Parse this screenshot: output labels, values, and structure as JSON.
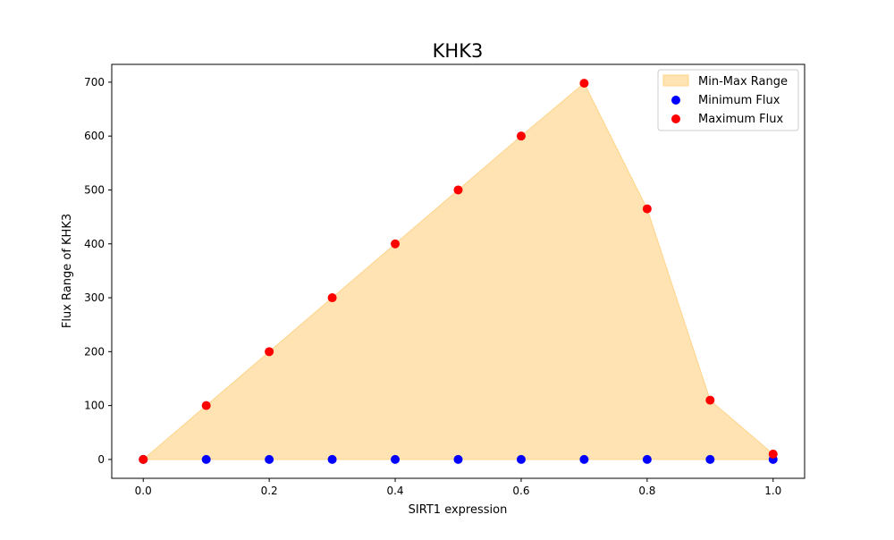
{
  "chart_data": {
    "type": "scatter",
    "title": "KHK3",
    "xlabel": "SIRT1 expression",
    "ylabel": "Flux Range of KHK3",
    "xlim": [
      -0.05,
      1.05
    ],
    "ylim": [
      -35,
      733
    ],
    "xticks": [
      0.0,
      0.2,
      0.4,
      0.6,
      0.8,
      1.0
    ],
    "xtick_labels": [
      "0.0",
      "0.2",
      "0.4",
      "0.6",
      "0.8",
      "1.0"
    ],
    "yticks": [
      0,
      100,
      200,
      300,
      400,
      500,
      600,
      700
    ],
    "ytick_labels": [
      "0",
      "100",
      "200",
      "300",
      "400",
      "500",
      "600",
      "700"
    ],
    "grid": false,
    "legend_position": "upper right",
    "x": [
      0.0,
      0.1,
      0.2,
      0.3,
      0.4,
      0.5,
      0.6,
      0.7,
      0.8,
      0.9,
      1.0
    ],
    "fill": {
      "name": "Min-Max Range",
      "color": "#FFE3B3",
      "edge_color": "#FFD48A"
    },
    "series": [
      {
        "name": "Minimum Flux",
        "color": "#0000FF",
        "values": [
          0,
          0,
          0,
          0,
          0,
          0,
          0,
          0,
          0,
          0,
          0
        ]
      },
      {
        "name": "Maximum Flux",
        "color": "#FF0000",
        "values": [
          0,
          100,
          200,
          300,
          400,
          500,
          600,
          698,
          465,
          110,
          10
        ]
      }
    ]
  }
}
